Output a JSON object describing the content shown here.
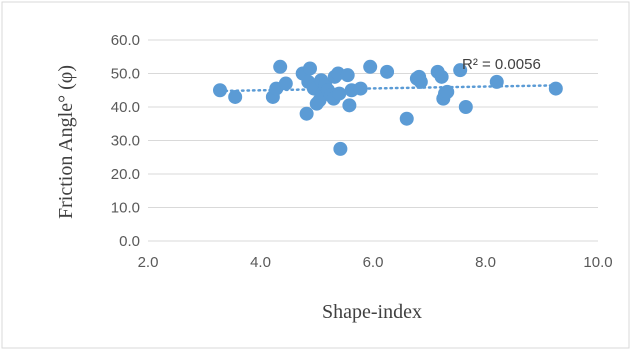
{
  "chart_data": {
    "type": "scatter",
    "xlabel": "Shape-index",
    "ylabel": "Friction Angle° (φ)",
    "xlim": [
      2.0,
      10.0
    ],
    "ylim": [
      0.0,
      60.0
    ],
    "x_ticks": [
      "2.0",
      "4.0",
      "6.0",
      "8.0",
      "10.0"
    ],
    "y_ticks": [
      "0.0",
      "10.0",
      "20.0",
      "30.0",
      "40.0",
      "50.0",
      "60.0"
    ],
    "grid": "horizontal",
    "trendline": {
      "type": "linear",
      "r2_label": "R² = 0.0056",
      "style": "dotted"
    },
    "colors": {
      "marker": "#5B9BD5",
      "trendline": "#5B9BD5",
      "grid": "#D9D9D9",
      "frame": "#D9D9D9"
    },
    "series": [
      {
        "points": [
          [
            3.28,
            45.0
          ],
          [
            3.55,
            43.0
          ],
          [
            4.22,
            43.0
          ],
          [
            4.28,
            45.5
          ],
          [
            4.35,
            52.0
          ],
          [
            4.45,
            47.0
          ],
          [
            4.75,
            50.0
          ],
          [
            4.82,
            38.0
          ],
          [
            4.85,
            47.5
          ],
          [
            4.88,
            51.5
          ],
          [
            4.95,
            45.5
          ],
          [
            5.0,
            41.0
          ],
          [
            5.05,
            42.0
          ],
          [
            5.08,
            48.0
          ],
          [
            5.1,
            44.0
          ],
          [
            5.15,
            46.5
          ],
          [
            5.2,
            45.0
          ],
          [
            5.25,
            43.5
          ],
          [
            5.3,
            42.5
          ],
          [
            5.32,
            49.0
          ],
          [
            5.38,
            50.0
          ],
          [
            5.4,
            44.0
          ],
          [
            5.42,
            27.5
          ],
          [
            5.55,
            49.5
          ],
          [
            5.58,
            40.5
          ],
          [
            5.62,
            45.0
          ],
          [
            5.78,
            45.5
          ],
          [
            5.95,
            52.0
          ],
          [
            6.25,
            50.5
          ],
          [
            6.6,
            36.5
          ],
          [
            6.78,
            48.5
          ],
          [
            6.82,
            49.0
          ],
          [
            6.85,
            47.5
          ],
          [
            7.15,
            50.5
          ],
          [
            7.22,
            49.0
          ],
          [
            7.25,
            42.5
          ],
          [
            7.28,
            44.0
          ],
          [
            7.32,
            44.5
          ],
          [
            7.55,
            51.0
          ],
          [
            7.65,
            40.0
          ],
          [
            8.2,
            47.5
          ],
          [
            9.25,
            45.5
          ]
        ]
      }
    ]
  }
}
